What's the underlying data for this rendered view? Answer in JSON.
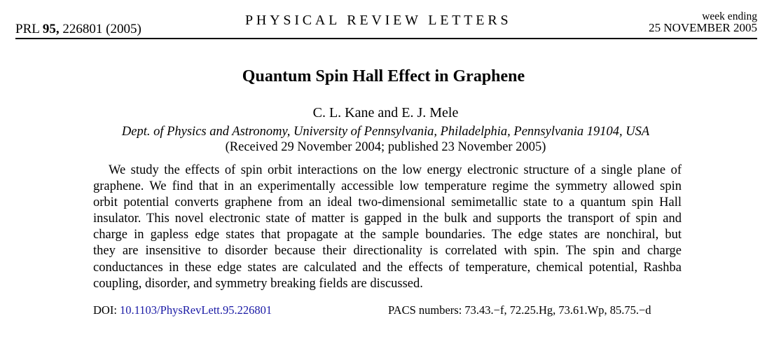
{
  "header": {
    "journal_abbrev": "PRL",
    "volume": "95,",
    "article_and_year": "226801 (2005)",
    "journal_name": "PHYSICAL REVIEW LETTERS",
    "week_ending_label": "week ending",
    "week_ending_date": "25 NOVEMBER 2005"
  },
  "title": "Quantum Spin Hall Effect in Graphene",
  "authors": "C. L. Kane and E. J. Mele",
  "affiliation": "Dept. of Physics and Astronomy, University of Pennsylvania, Philadelphia, Pennsylvania 19104, USA",
  "received": "(Received 29 November 2004; published 23 November 2005)",
  "abstract_lines": [
    "We study the effects of spin orbit interactions on the low energy electronic structure of a single plane of",
    "graphene. We find that in an experimentally accessible low temperature regime the symmetry allowed spin",
    "orbit potential converts graphene from an ideal two-dimensional semimetallic state to a quantum spin Hall",
    "insulator. This novel electronic state of matter is gapped in the bulk and supports the transport of spin and",
    "charge in gapless edge states that propagate at the sample boundaries. The edge states are nonchiral, but",
    "they are insensitive to disorder because their directionality is correlated with spin. The spin and charge",
    "conductances in these edge states are calculated and the effects of temperature, chemical potential, Rashba",
    "coupling, disorder, and symmetry breaking fields are discussed."
  ],
  "doi": {
    "label": "DOI:",
    "value": "10.1103/PhysRevLett.95.226801",
    "link_color": "#1a1aa6"
  },
  "pacs": "PACS numbers: 73.43.−f, 72.25.Hg, 73.61.Wp, 85.75.−d"
}
